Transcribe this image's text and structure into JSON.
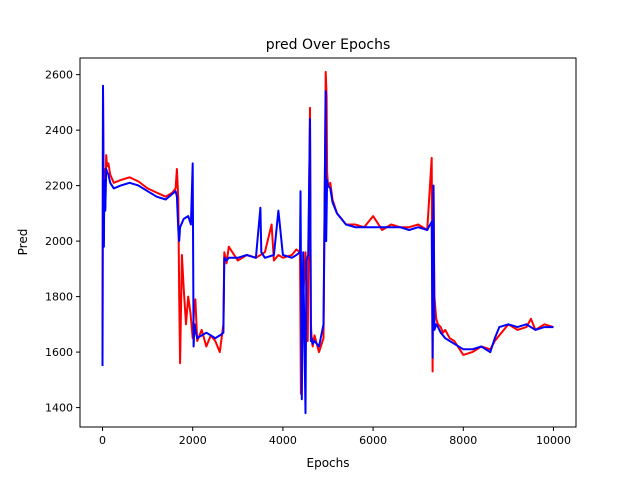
{
  "chart_data": {
    "type": "line",
    "title": "pred Over Epochs",
    "xlabel": "Epochs",
    "ylabel": "Pred",
    "xlim": [
      -500,
      10500
    ],
    "ylim": [
      1330,
      2660
    ],
    "grid": false,
    "legend": "none",
    "x_ticks": [
      0,
      2000,
      4000,
      6000,
      8000,
      10000
    ],
    "y_ticks": [
      1400,
      1600,
      1800,
      2000,
      2200,
      2400,
      2600
    ],
    "x_tick_labels": [
      "0",
      "2000",
      "4000",
      "6000",
      "8000",
      "10000"
    ],
    "y_tick_labels": [
      "1400",
      "1600",
      "1800",
      "2000",
      "2200",
      "2400",
      "2600"
    ],
    "series": [
      {
        "color": "#ff0000",
        "x": [
          0,
          10,
          20,
          30,
          40,
          60,
          80,
          100,
          130,
          170,
          250,
          400,
          600,
          800,
          1000,
          1200,
          1400,
          1550,
          1620,
          1650,
          1680,
          1700,
          1720,
          1760,
          1800,
          1850,
          1900,
          1950,
          2000,
          2030,
          2060,
          2100,
          2200,
          2300,
          2400,
          2500,
          2600,
          2680,
          2700,
          2750,
          2800,
          3000,
          3200,
          3400,
          3600,
          3750,
          3800,
          3900,
          4000,
          4200,
          4300,
          4380,
          4400,
          4450,
          4500,
          4550,
          4600,
          4620,
          4640,
          4660,
          4700,
          4800,
          4900,
          4950,
          4970,
          4980,
          5000,
          5050,
          5100,
          5200,
          5300,
          5400,
          5600,
          5800,
          6000,
          6200,
          6400,
          6600,
          6800,
          7000,
          7200,
          7300,
          7320,
          7340,
          7360,
          7400,
          7440,
          7500,
          7550,
          7600,
          7700,
          7800,
          8000,
          8200,
          8400,
          8600,
          8700,
          8800,
          9000,
          9200,
          9400,
          9500,
          9600,
          9800,
          10000
        ],
        "y": [
          1560,
          2550,
          2330,
          2000,
          2260,
          2120,
          2310,
          2270,
          2280,
          2240,
          2210,
          2220,
          2230,
          2215,
          2190,
          2175,
          2160,
          2175,
          2190,
          2260,
          2150,
          1800,
          1560,
          1950,
          1830,
          1700,
          1800,
          1740,
          1650,
          1760,
          1790,
          1640,
          1680,
          1620,
          1660,
          1640,
          1600,
          1700,
          1960,
          1920,
          1980,
          1930,
          1950,
          1940,
          1960,
          2060,
          1930,
          1950,
          1940,
          1950,
          1970,
          1960,
          1450,
          1800,
          1960,
          1640,
          2480,
          1700,
          1640,
          1620,
          1660,
          1600,
          1650,
          2610,
          2520,
          2250,
          2200,
          2210,
          2150,
          2100,
          2080,
          2060,
          2060,
          2050,
          2090,
          2040,
          2060,
          2050,
          2050,
          2060,
          2040,
          2300,
          1530,
          2200,
          1800,
          1720,
          1700,
          1690,
          1670,
          1680,
          1650,
          1640,
          1590,
          1600,
          1620,
          1610,
          1640,
          1660,
          1700,
          1680,
          1690,
          1720,
          1680,
          1700,
          1690
        ]
      },
      {
        "color": "#0000ff",
        "x": [
          0,
          10,
          20,
          30,
          40,
          60,
          80,
          100,
          130,
          170,
          250,
          400,
          600,
          800,
          1000,
          1200,
          1400,
          1550,
          1620,
          1650,
          1680,
          1700,
          1720,
          1800,
          1900,
          1960,
          2000,
          2020,
          2040,
          2060,
          2100,
          2200,
          2300,
          2400,
          2500,
          2600,
          2680,
          2700,
          2750,
          2800,
          3000,
          3200,
          3400,
          3500,
          3520,
          3600,
          3800,
          3900,
          4000,
          4200,
          4300,
          4380,
          4390,
          4420,
          4450,
          4500,
          4520,
          4560,
          4600,
          4620,
          4640,
          4660,
          4700,
          4800,
          4900,
          4950,
          4960,
          4980,
          5000,
          5050,
          5100,
          5200,
          5300,
          5400,
          5600,
          5800,
          6000,
          6200,
          6400,
          6600,
          6800,
          7000,
          7200,
          7300,
          7320,
          7340,
          7360,
          7400,
          7440,
          7500,
          7550,
          7600,
          7700,
          7800,
          8000,
          8200,
          8400,
          8600,
          8700,
          8800,
          9000,
          9200,
          9400,
          9600,
          9800,
          10000
        ],
        "y": [
          1550,
          2560,
          2280,
          1980,
          2220,
          2110,
          2260,
          2250,
          2240,
          2210,
          2190,
          2200,
          2210,
          2200,
          2180,
          2160,
          2150,
          2170,
          2180,
          2160,
          2040,
          2000,
          2050,
          2080,
          2090,
          2060,
          2280,
          1620,
          1700,
          1680,
          1650,
          1660,
          1670,
          1660,
          1650,
          1660,
          1670,
          1940,
          1930,
          1940,
          1940,
          1950,
          1940,
          2120,
          1960,
          1940,
          1950,
          2110,
          1950,
          1940,
          1950,
          1960,
          2180,
          1430,
          1960,
          1380,
          1930,
          1950,
          2440,
          1640,
          1650,
          1630,
          1640,
          1620,
          1700,
          2540,
          2000,
          2220,
          2200,
          2190,
          2140,
          2100,
          2080,
          2060,
          2050,
          2050,
          2050,
          2050,
          2050,
          2050,
          2040,
          2050,
          2040,
          2070,
          1580,
          2200,
          1680,
          1700,
          1690,
          1670,
          1660,
          1650,
          1640,
          1630,
          1610,
          1610,
          1620,
          1600,
          1650,
          1690,
          1700,
          1690,
          1700,
          1680,
          1690,
          1690
        ]
      }
    ]
  }
}
